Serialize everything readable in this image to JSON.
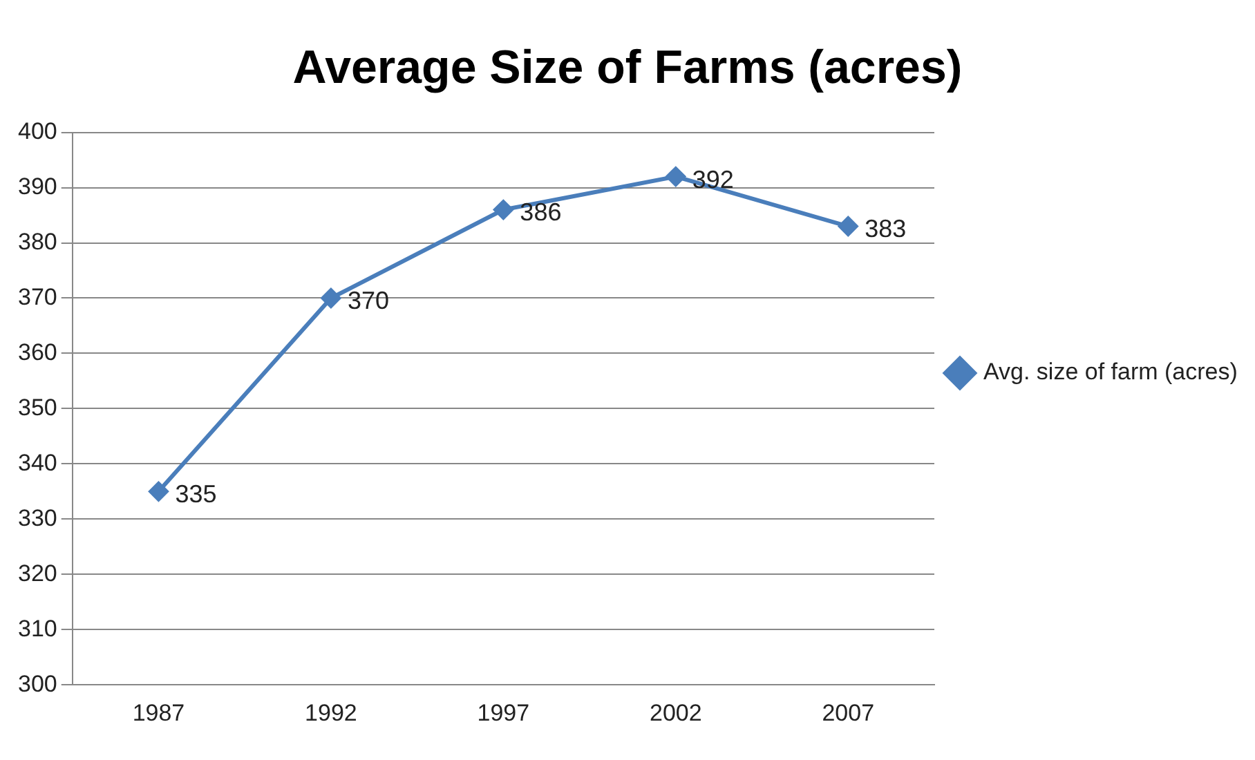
{
  "chart_data": {
    "type": "line",
    "title": "Average Size of Farms (acres)",
    "categories": [
      "1987",
      "1992",
      "1997",
      "2002",
      "2007"
    ],
    "series": [
      {
        "name": "Avg. size of farm (acres)",
        "color": "#4a7ebb",
        "values": [
          335,
          370,
          386,
          392,
          383
        ]
      }
    ],
    "ylim": [
      300,
      400
    ],
    "yticks": [
      300,
      310,
      320,
      330,
      340,
      350,
      360,
      370,
      380,
      390,
      400
    ],
    "grid": "y",
    "legend": "right",
    "marker": "diamond",
    "line_style": "solid",
    "data_labels": true
  }
}
